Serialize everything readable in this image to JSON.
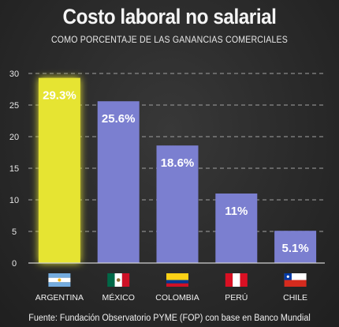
{
  "title": "Costo laboral no salarial",
  "subtitle": "COMO PORCENTAJE DE LAS GANANCIAS COMERCIALES",
  "source": "Fuente: Fundación Observatorio PYME (FOP) con base en Banco Mundial",
  "chart_data": {
    "type": "bar",
    "categories": [
      "ARGENTINA",
      "MÉXICO",
      "COLOMBIA",
      "PERÚ",
      "CHILE"
    ],
    "values": [
      29.3,
      25.6,
      18.6,
      11,
      5.1
    ],
    "value_labels": [
      "29.3%",
      "25.6%",
      "18.6%",
      "11%",
      "5.1%"
    ],
    "ylim": [
      0,
      30
    ],
    "yticks": [
      "0",
      "5",
      "10",
      "15",
      "20",
      "25",
      "30"
    ],
    "grid": true,
    "highlight_category": "ARGENTINA",
    "colors": {
      "highlight": "#e6e431",
      "bar": "#7b7fd0",
      "grid": "#8a8a8a",
      "axis": "#d0d0d0"
    },
    "flag_icons": [
      "argentina-flag-icon",
      "mexico-flag-icon",
      "colombia-flag-icon",
      "peru-flag-icon",
      "chile-flag-icon"
    ]
  }
}
